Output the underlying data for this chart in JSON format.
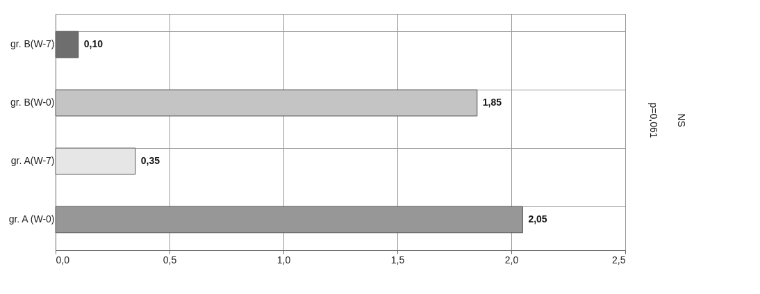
{
  "chart_data": {
    "type": "bar",
    "orientation": "horizontal",
    "categories": [
      "gr. B(W-7)",
      "gr. B(W-0)",
      "gr. A(W-7)",
      "gr. A (W-0)"
    ],
    "values": [
      0.1,
      1.85,
      0.35,
      2.05
    ],
    "colors": [
      "#6e6e6e",
      "#c4c4c4",
      "#e6e6e6",
      "#979797"
    ],
    "value_labels": [
      "0,10",
      "1,85",
      "0,35",
      "2,05"
    ],
    "xlim": [
      0,
      2.5
    ],
    "xticks": [
      {
        "value": 0,
        "label": "0,0"
      },
      {
        "value": 0.5,
        "label": "0,5"
      },
      {
        "value": 1,
        "label": "1,0"
      },
      {
        "value": 1.5,
        "label": "1,5"
      },
      {
        "value": 2,
        "label": "2,0"
      },
      {
        "value": 2.5,
        "label": "2,5"
      }
    ],
    "grid": true,
    "annotations": [
      "p=0,061",
      "NS"
    ]
  }
}
